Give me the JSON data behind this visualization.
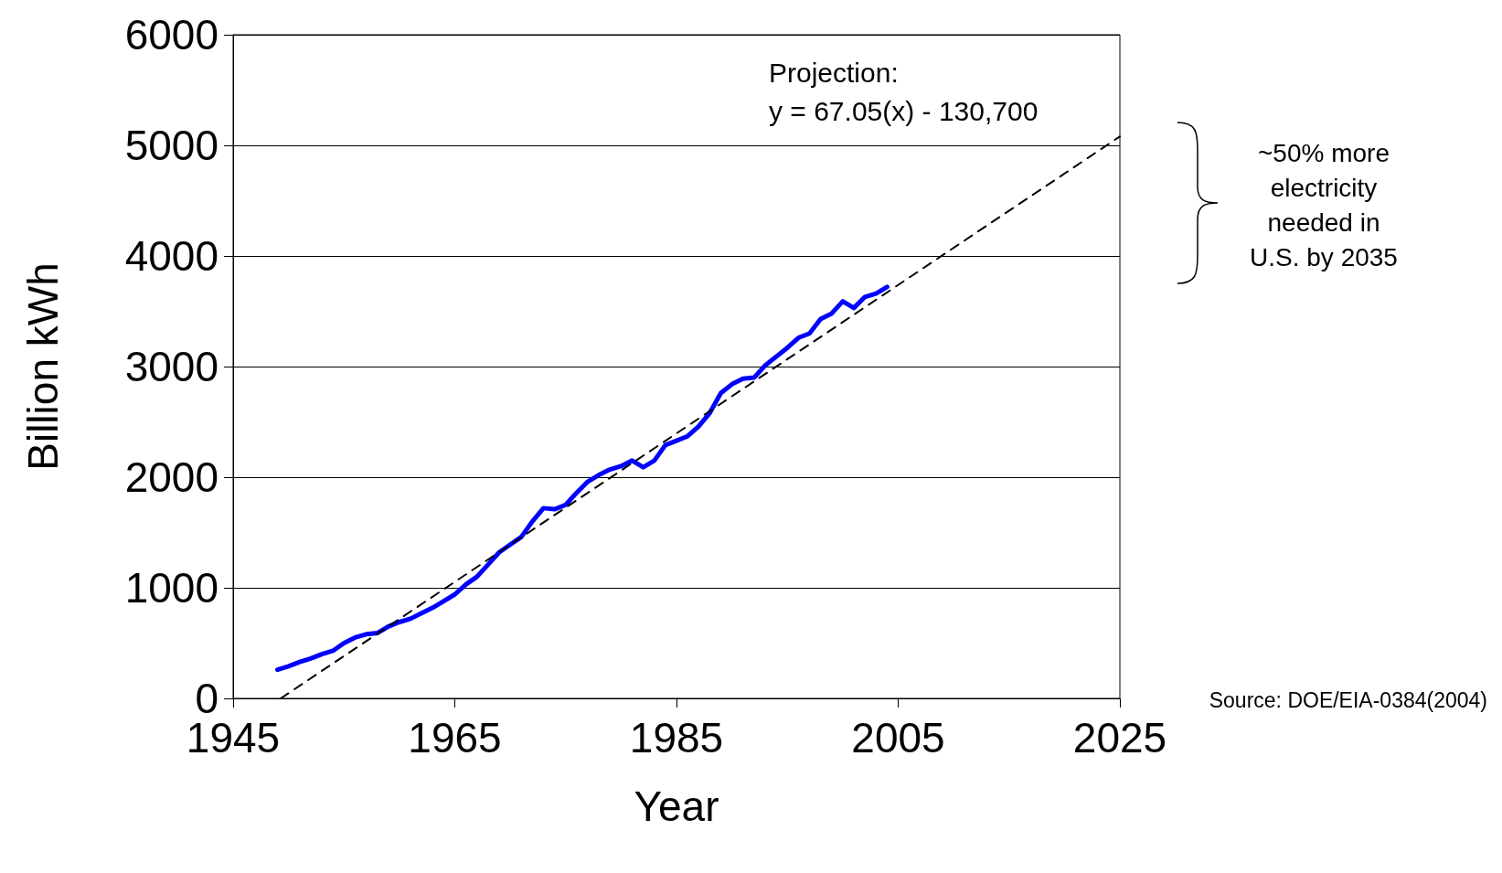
{
  "chart_data": {
    "type": "line",
    "xlabel": "Year",
    "ylabel": "Billion kWh",
    "xlim": [
      1945,
      2025
    ],
    "xticks": [
      1945,
      1965,
      1985,
      2005,
      2025
    ],
    "ylim": [
      0,
      6000
    ],
    "yticks": [
      0,
      1000,
      2000,
      3000,
      4000,
      5000,
      6000
    ],
    "grid": "y",
    "marker": "none",
    "series": [
      {
        "color": "#0000ff",
        "line_style": "solid",
        "x": [
          1949,
          1950,
          1951,
          1952,
          1953,
          1954,
          1955,
          1956,
          1957,
          1958,
          1959,
          1960,
          1961,
          1962,
          1963,
          1964,
          1965,
          1966,
          1967,
          1968,
          1969,
          1970,
          1971,
          1972,
          1973,
          1974,
          1975,
          1976,
          1977,
          1978,
          1979,
          1980,
          1981,
          1982,
          1983,
          1984,
          1985,
          1986,
          1987,
          1988,
          1989,
          1990,
          1991,
          1992,
          1993,
          1994,
          1995,
          1996,
          1997,
          1998,
          1999,
          2000,
          2001,
          2002,
          2003,
          2004
        ],
        "values": [
          260,
          290,
          330,
          360,
          400,
          430,
          500,
          550,
          580,
          590,
          650,
          690,
          720,
          770,
          820,
          880,
          940,
          1030,
          1100,
          1210,
          1320,
          1390,
          1460,
          1600,
          1720,
          1710,
          1750,
          1860,
          1960,
          2020,
          2070,
          2100,
          2150,
          2090,
          2150,
          2290,
          2330,
          2370,
          2460,
          2580,
          2760,
          2840,
          2890,
          2900,
          3010,
          3090,
          3170,
          3260,
          3300,
          3430,
          3480,
          3590,
          3530,
          3630,
          3660,
          3720
        ]
      },
      {
        "type": "line",
        "color": "#000000",
        "line_style": "dashed",
        "x": [
          1949.3,
          2025
        ],
        "values": [
          0,
          5080
        ]
      }
    ],
    "annotations": [
      "Projection:\ny = 67.05(x) - 130,700",
      "~50% more\nelectricity\nneeded in\nU.S. by 2035",
      "Source: DOE/EIA-0384(2004)"
    ]
  }
}
